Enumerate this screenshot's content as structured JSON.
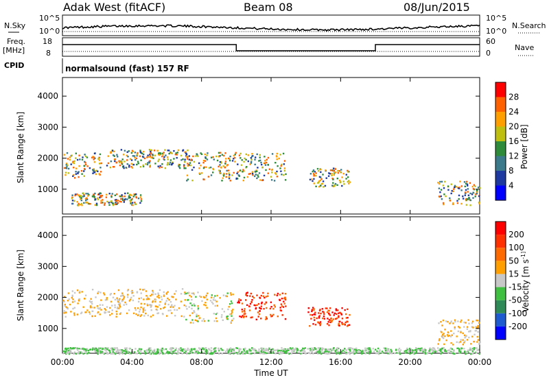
{
  "header": {
    "station": "Adak West (fitACF)",
    "beam": "Beam 08",
    "date": "08/Jun/2015"
  },
  "strip": {
    "nsky_label": "N.Sky",
    "nsearch_label": "N.Search",
    "nsky_ticks": [
      "10^5",
      "10^0"
    ],
    "nsky_right_ticks": [
      "10^5",
      "10^0"
    ],
    "freq_label_1": "Freq.",
    "freq_label_2": "[MHz]",
    "freq_ticks": [
      "18",
      "8"
    ],
    "nave_label": "Nave",
    "nave_ticks": [
      "60",
      "0"
    ],
    "cpid_label": "CPID",
    "cpid_text": "normalsound (fast) 157 RF"
  },
  "chart_data": [
    {
      "type": "heatmap",
      "title": "",
      "xlabel": "",
      "ylabel": "Slant Range [km]",
      "ylim": [
        200,
        4600
      ],
      "xlim": [
        "00:00",
        "24:00"
      ],
      "y_ticks": [
        "1000",
        "2000",
        "3000",
        "4000"
      ],
      "x_ticks": [
        "00:00",
        "04:00",
        "08:00",
        "12:00",
        "16:00",
        "20:00",
        "00:00"
      ],
      "colorbar": {
        "label": "Power [dB]",
        "ticks": [
          "4",
          "8",
          "12",
          "16",
          "20",
          "24",
          "28"
        ],
        "colors": [
          "#0000ff",
          "#1e3aa0",
          "#3a7a8a",
          "#2e8b3a",
          "#bfbf10",
          "#ffa000",
          "#ff6000",
          "#ff0000"
        ]
      },
      "features": [
        {
          "t0": 0.0,
          "t1": 2.2,
          "r0": 1350,
          "r1": 2200
        },
        {
          "t0": 2.5,
          "t1": 7.2,
          "r0": 1700,
          "r1": 2300
        },
        {
          "t0": 7.0,
          "t1": 12.8,
          "r0": 1300,
          "r1": 2200
        },
        {
          "t0": 14.2,
          "t1": 16.5,
          "r0": 1100,
          "r1": 1700
        },
        {
          "t0": 21.5,
          "t1": 24.0,
          "r0": 500,
          "r1": 1300
        },
        {
          "t0": 0.5,
          "t1": 4.5,
          "r0": 500,
          "r1": 900
        }
      ]
    },
    {
      "type": "heatmap",
      "title": "",
      "xlabel": "Time UT",
      "ylabel": "Slant Range [km]",
      "ylim": [
        200,
        4600
      ],
      "xlim": [
        "00:00",
        "24:00"
      ],
      "y_ticks": [
        "1000",
        "2000",
        "3000",
        "4000"
      ],
      "x_ticks": [
        "00:00",
        "04:00",
        "08:00",
        "12:00",
        "16:00",
        "20:00",
        "00:00"
      ],
      "colorbar": {
        "label": "Velocity [m s^-1]",
        "ticks": [
          "200",
          "100",
          "50",
          "15",
          "-15",
          "-50",
          "-100",
          "-200"
        ],
        "colors": [
          "#0000ff",
          "#1e5ad0",
          "#2e8b57",
          "#40c040",
          "#c8c8c8",
          "#ffa000",
          "#ff6a00",
          "#ff3000",
          "#ff0000"
        ]
      },
      "features": [
        {
          "t0": 0.0,
          "t1": 7.0,
          "r0": 1400,
          "r1": 2300
        },
        {
          "t0": 7.0,
          "t1": 9.8,
          "r0": 1200,
          "r1": 2200
        },
        {
          "t0": 10.0,
          "t1": 12.8,
          "r0": 1300,
          "r1": 2200
        },
        {
          "t0": 14.0,
          "t1": 16.5,
          "r0": 1100,
          "r1": 1700
        },
        {
          "t0": 21.5,
          "t1": 24.0,
          "r0": 500,
          "r1": 1300
        },
        {
          "t0": 0.0,
          "t1": 24.0,
          "r0": 200,
          "r1": 400
        }
      ]
    }
  ]
}
